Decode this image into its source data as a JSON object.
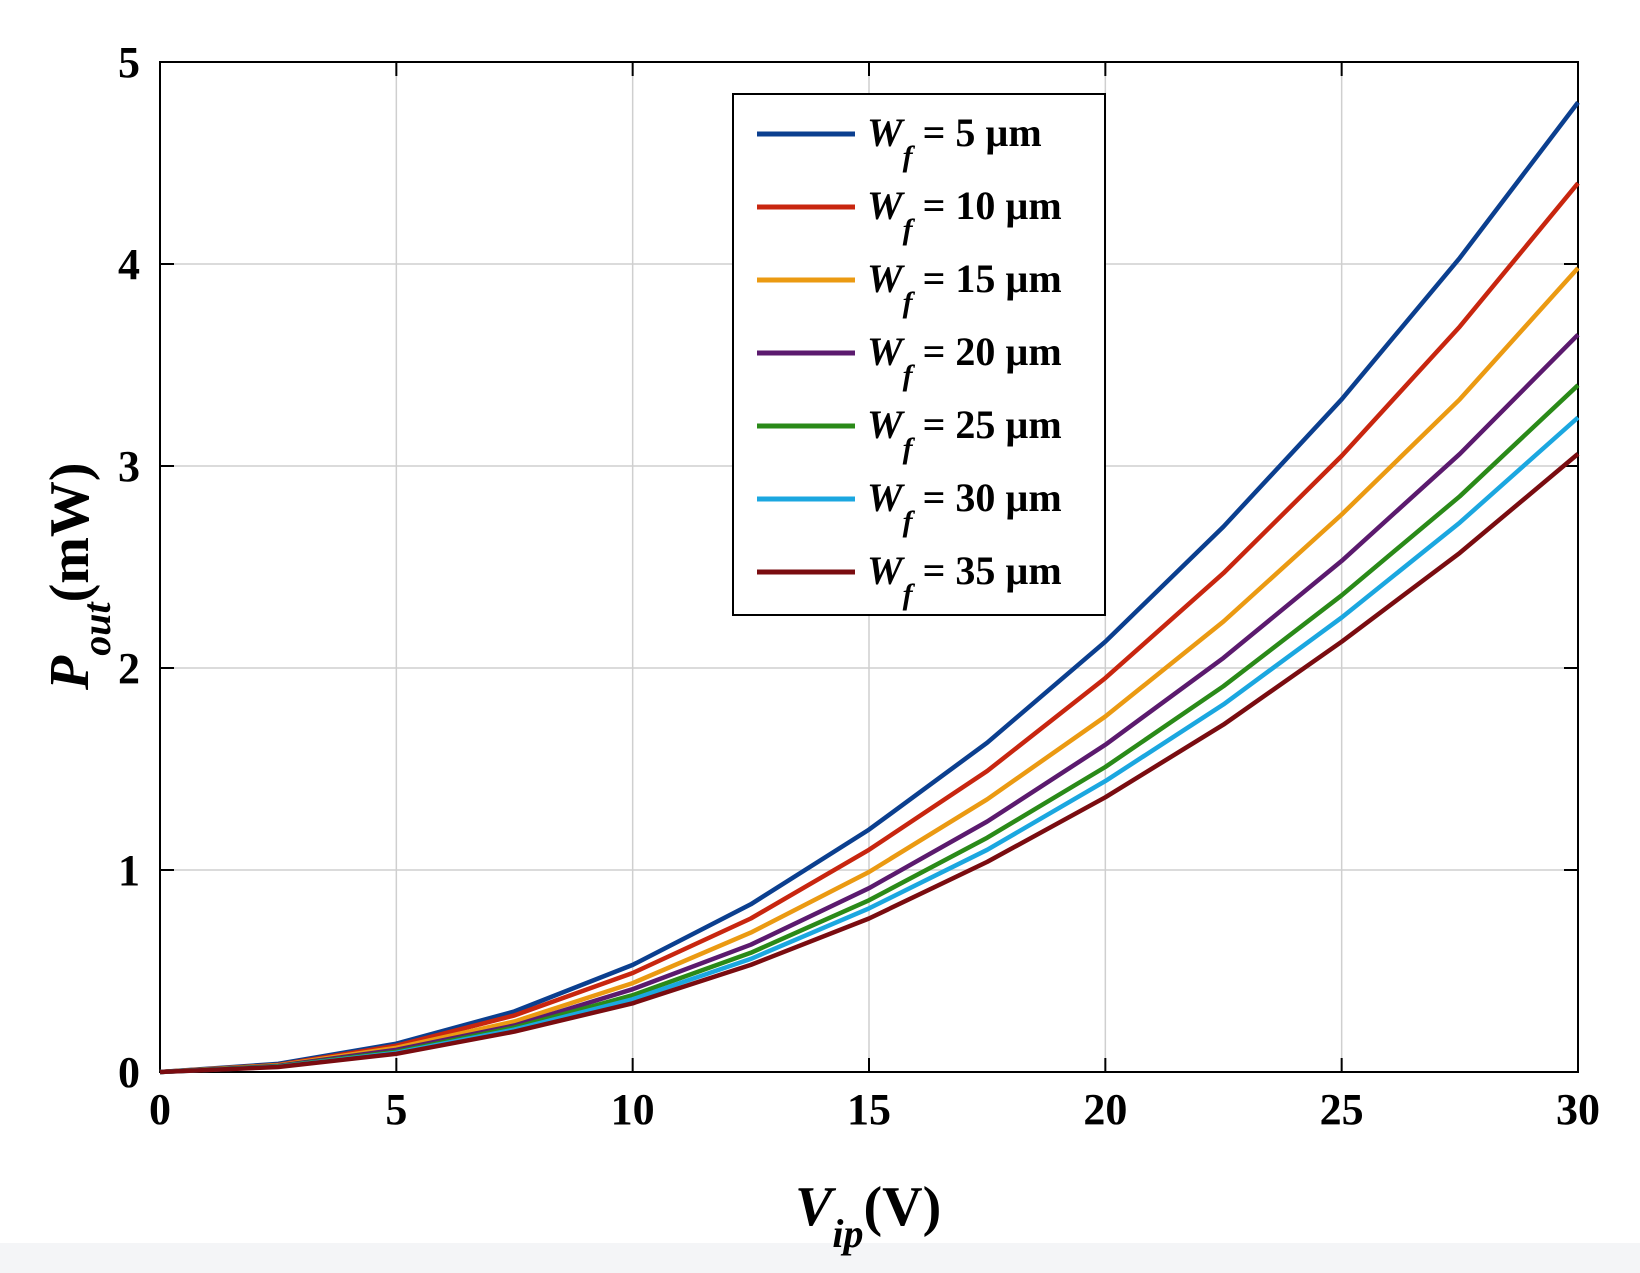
{
  "chart_data": {
    "type": "line",
    "title": "",
    "xlabel": {
      "main": "V",
      "sub": "ip",
      "unit": "(V)"
    },
    "ylabel": {
      "main": "P",
      "sub": "out",
      "unit": "(mW)"
    },
    "xlim": [
      0,
      30
    ],
    "ylim": [
      0,
      5
    ],
    "xticks": [
      0,
      5,
      10,
      15,
      20,
      25,
      30
    ],
    "yticks": [
      0,
      1,
      2,
      3,
      4,
      5
    ],
    "grid": true,
    "legend_position": "top-center",
    "x": [
      0,
      2.5,
      5,
      7.5,
      10,
      12.5,
      15,
      17.5,
      20,
      22.5,
      25,
      27.5,
      30
    ],
    "series": [
      {
        "name": "5 µm",
        "label": {
          "main": "W",
          "sub": "f",
          "text": " = 5 µm"
        },
        "color": "#0b3f8f",
        "values": [
          0,
          0.04,
          0.14,
          0.3,
          0.53,
          0.83,
          1.2,
          1.63,
          2.13,
          2.7,
          3.33,
          4.03,
          4.8
        ]
      },
      {
        "name": "10 µm",
        "label": {
          "main": "W",
          "sub": "f",
          "text": " = 10 µm"
        },
        "color": "#c8260f",
        "values": [
          0,
          0.035,
          0.13,
          0.28,
          0.49,
          0.76,
          1.1,
          1.49,
          1.95,
          2.47,
          3.05,
          3.69,
          4.4
        ]
      },
      {
        "name": "15 µm",
        "label": {
          "main": "W",
          "sub": "f",
          "text": " = 15 µm"
        },
        "color": "#eb9a12",
        "values": [
          0,
          0.033,
          0.12,
          0.25,
          0.44,
          0.69,
          0.99,
          1.35,
          1.76,
          2.23,
          2.76,
          3.33,
          3.98
        ]
      },
      {
        "name": "20 µm",
        "label": {
          "main": "W",
          "sub": "f",
          "text": " = 20 µm"
        },
        "color": "#5b1a6e",
        "values": [
          0,
          0.03,
          0.11,
          0.23,
          0.41,
          0.63,
          0.91,
          1.24,
          1.62,
          2.05,
          2.53,
          3.06,
          3.65
        ]
      },
      {
        "name": "25 µm",
        "label": {
          "main": "W",
          "sub": "f",
          "text": " = 25 µm"
        },
        "color": "#2a8a18",
        "values": [
          0,
          0.028,
          0.1,
          0.22,
          0.38,
          0.59,
          0.85,
          1.16,
          1.51,
          1.91,
          2.36,
          2.85,
          3.4
        ]
      },
      {
        "name": "30 µm",
        "label": {
          "main": "W",
          "sub": "f",
          "text": " = 30 µm"
        },
        "color": "#1ba7e0",
        "values": [
          0,
          0.026,
          0.095,
          0.21,
          0.36,
          0.56,
          0.81,
          1.1,
          1.44,
          1.82,
          2.25,
          2.72,
          3.24
        ]
      },
      {
        "name": "35 µm",
        "label": {
          "main": "W",
          "sub": "f",
          "text": " = 35 µm"
        },
        "color": "#7a0c10",
        "values": [
          0,
          0.025,
          0.09,
          0.2,
          0.34,
          0.53,
          0.76,
          1.04,
          1.36,
          1.72,
          2.13,
          2.57,
          3.06
        ]
      }
    ]
  }
}
